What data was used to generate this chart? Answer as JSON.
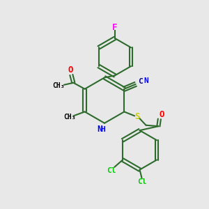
{
  "background_color": "#e8e8e8",
  "bond_color": "#2d6b2d",
  "atom_colors": {
    "F": "#ff00ff",
    "O": "#ff0000",
    "N": "#0000ff",
    "C": "#000080",
    "S": "#cccc00",
    "Cl": "#00cc00",
    "H": "#0000ff"
  },
  "figsize": [
    3.0,
    3.0
  ],
  "dpi": 100
}
